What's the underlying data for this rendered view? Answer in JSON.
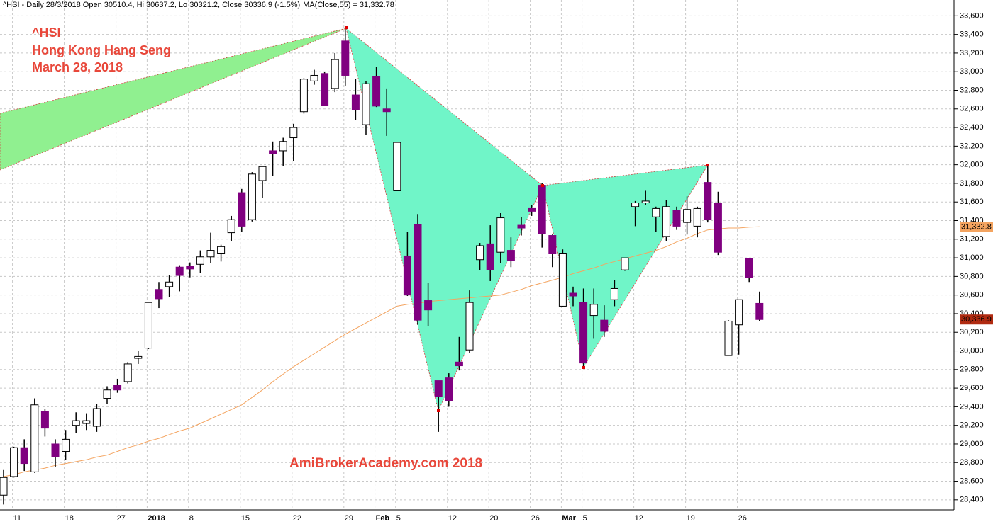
{
  "chart_data": {
    "type": "candlestick",
    "subtitle": "^HSI - Daily 28/3/2018 Open 30510.4, Hi 30637.2, Lo 30321.2, Close 30336.9 (-1.5%)",
    "annotations": [
      "^HSI",
      "Hong Kong Hang Seng",
      "March 28, 2018"
    ],
    "watermark": "AmiBrokerAcademy.com  2018",
    "categories": [
      null,
      "11",
      null,
      null,
      null,
      null,
      "18",
      null,
      null,
      null,
      null,
      "27",
      null,
      null,
      "2018",
      null,
      null,
      null,
      "8",
      null,
      null,
      null,
      null,
      "15",
      null,
      null,
      null,
      null,
      "22",
      null,
      null,
      null,
      null,
      "29",
      null,
      null,
      "Feb",
      null,
      "5",
      null,
      null,
      null,
      null,
      "12",
      null,
      null,
      null,
      "20",
      null,
      null,
      null,
      "26",
      null,
      null,
      "Mar",
      null,
      "5",
      null,
      null,
      null,
      null,
      "12",
      null,
      null,
      null,
      null,
      "19",
      null,
      null,
      null,
      null,
      "26",
      null,
      null
    ],
    "open": [
      28450,
      28650,
      28960,
      28700,
      29350,
      29000,
      28920,
      29200,
      29220,
      29190,
      29490,
      29630,
      29670,
      29920,
      30030,
      30660,
      30690,
      30900,
      30910,
      30930,
      31010,
      31050,
      31270,
      31700,
      31410,
      31830,
      32150,
      32150,
      32290,
      32570,
      32900,
      32980,
      32820,
      33330,
      32750,
      32430,
      32950,
      32600,
      31720,
      31020,
      31360,
      30540,
      29680,
      29710,
      29880,
      30010,
      30980,
      31150,
      31060,
      31080,
      31350,
      31530,
      31780,
      31240,
      30480,
      30620,
      30520,
      30380,
      30330,
      30550,
      30870,
      31550,
      31590,
      31440,
      31230,
      31510,
      31380,
      31340,
      31810,
      31590,
      29950,
      30280,
      30990,
      30510.4
    ],
    "high": [
      28720,
      28970,
      29050,
      29490,
      29380,
      29050,
      29150,
      29340,
      29330,
      29430,
      29620,
      29700,
      29880,
      30000,
      30520,
      30740,
      30810,
      30920,
      30950,
      31080,
      31270,
      31140,
      31450,
      31740,
      31920,
      31980,
      32250,
      32290,
      32440,
      32930,
      33020,
      33000,
      33200,
      33480,
      32920,
      32900,
      33050,
      32820,
      32240,
      31280,
      31470,
      30730,
      29680,
      29760,
      30150,
      30650,
      31160,
      31350,
      31480,
      31220,
      31440,
      31570,
      31800,
      31250,
      31090,
      30690,
      30670,
      30670,
      30490,
      30760,
      31000,
      31610,
      31720,
      31550,
      31620,
      31550,
      31660,
      31550,
      31990,
      31710,
      30330,
      30550,
      30990,
      30637.2
    ],
    "low": [
      28350,
      28640,
      28710,
      28690,
      29080,
      28750,
      28830,
      29120,
      29150,
      29130,
      29430,
      29550,
      29650,
      29860,
      30020,
      30460,
      30580,
      30640,
      30790,
      30840,
      30940,
      30960,
      31180,
      31280,
      31390,
      31640,
      31880,
      31990,
      32040,
      32550,
      32860,
      32640,
      32780,
      32850,
      32480,
      32320,
      32620,
      32310,
      31720,
      30590,
      30280,
      30270,
      29130,
      29400,
      29790,
      29980,
      30870,
      30750,
      30940,
      30900,
      31240,
      31450,
      31110,
      30900,
      30470,
      30480,
      29810,
      30130,
      30150,
      30480,
      30860,
      31340,
      31570,
      31280,
      31180,
      31300,
      31250,
      31220,
      31380,
      31030,
      29950,
      29960,
      30740,
      30321.2
    ],
    "close": [
      28640,
      28960,
      28790,
      29420,
      29170,
      28860,
      29050,
      29250,
      29250,
      29380,
      29580,
      29580,
      29860,
      29940,
      30520,
      30560,
      30740,
      30810,
      30880,
      31010,
      31080,
      31120,
      31410,
      31340,
      31900,
      31980,
      32120,
      32250,
      32400,
      32920,
      32960,
      32640,
      33130,
      32960,
      32590,
      32870,
      32630,
      32570,
      32240,
      30600,
      30330,
      30440,
      29510,
      29460,
      29840,
      30520,
      31130,
      30870,
      31430,
      30970,
      31320,
      31500,
      31260,
      31050,
      31050,
      30590,
      29870,
      30500,
      30210,
      30670,
      31000,
      31590,
      31610,
      31530,
      31550,
      31340,
      31520,
      31530,
      31410,
      31060,
      30320,
      30550,
      30790,
      30336.9
    ],
    "up_color": "#ffffff",
    "down_color": "#800080",
    "close_label": "30,336.9",
    "ma": {
      "name": "MA(Close,55) = 31,332.78",
      "color": "#f4a460",
      "last_label": "31,332.8",
      "values": [
        28650,
        28670,
        28700,
        28720,
        28740,
        28770,
        28790,
        28810,
        28830,
        28860,
        28880,
        28920,
        28960,
        28990,
        29030,
        29060,
        29100,
        29140,
        29170,
        29220,
        29270,
        29320,
        29370,
        29420,
        29500,
        29580,
        29670,
        29750,
        29830,
        29900,
        29970,
        30040,
        30110,
        30180,
        30240,
        30300,
        30360,
        30420,
        30480,
        30500,
        30510,
        30530,
        30540,
        30550,
        30560,
        30570,
        30580,
        30590,
        30600,
        30630,
        30660,
        30700,
        30730,
        30760,
        30790,
        30830,
        30860,
        30890,
        30930,
        30960,
        30990,
        31020,
        31050,
        31080,
        31120,
        31170,
        31210,
        31260,
        31300,
        31310,
        31320,
        31320,
        31330,
        31332.78
      ]
    },
    "ylim": [
      28140,
      33770
    ],
    "yticks": [
      {
        "value": 28400,
        "label": "28,400"
      },
      {
        "value": 28600,
        "label": "28,600"
      },
      {
        "value": 28800,
        "label": "28,800"
      },
      {
        "value": 29000,
        "label": "29,000"
      },
      {
        "value": 29200,
        "label": "29,200"
      },
      {
        "value": 29400,
        "label": "29,400"
      },
      {
        "value": 29600,
        "label": "29,600"
      },
      {
        "value": 29800,
        "label": "29,800"
      },
      {
        "value": 30000,
        "label": "30,000"
      },
      {
        "value": 30200,
        "label": "30,200"
      },
      {
        "value": 30400,
        "label": "30,400"
      },
      {
        "value": 30600,
        "label": "30,600"
      },
      {
        "value": 30800,
        "label": "30,800"
      },
      {
        "value": 31000,
        "label": "31,000"
      },
      {
        "value": 31200,
        "label": "31,200"
      },
      {
        "value": 31400,
        "label": "31,400"
      },
      {
        "value": 31600,
        "label": "31,600"
      },
      {
        "value": 31800,
        "label": "31,800"
      },
      {
        "value": 32000,
        "label": "32,000"
      },
      {
        "value": 32200,
        "label": "32,200"
      },
      {
        "value": 32400,
        "label": "32,400"
      },
      {
        "value": 32600,
        "label": "32,600"
      },
      {
        "value": 32800,
        "label": "32,800"
      },
      {
        "value": 33000,
        "label": "33,000"
      },
      {
        "value": 33200,
        "label": "33,200"
      },
      {
        "value": 33400,
        "label": "33,400"
      },
      {
        "value": 33600,
        "label": "33,600"
      }
    ],
    "grid": true
  }
}
